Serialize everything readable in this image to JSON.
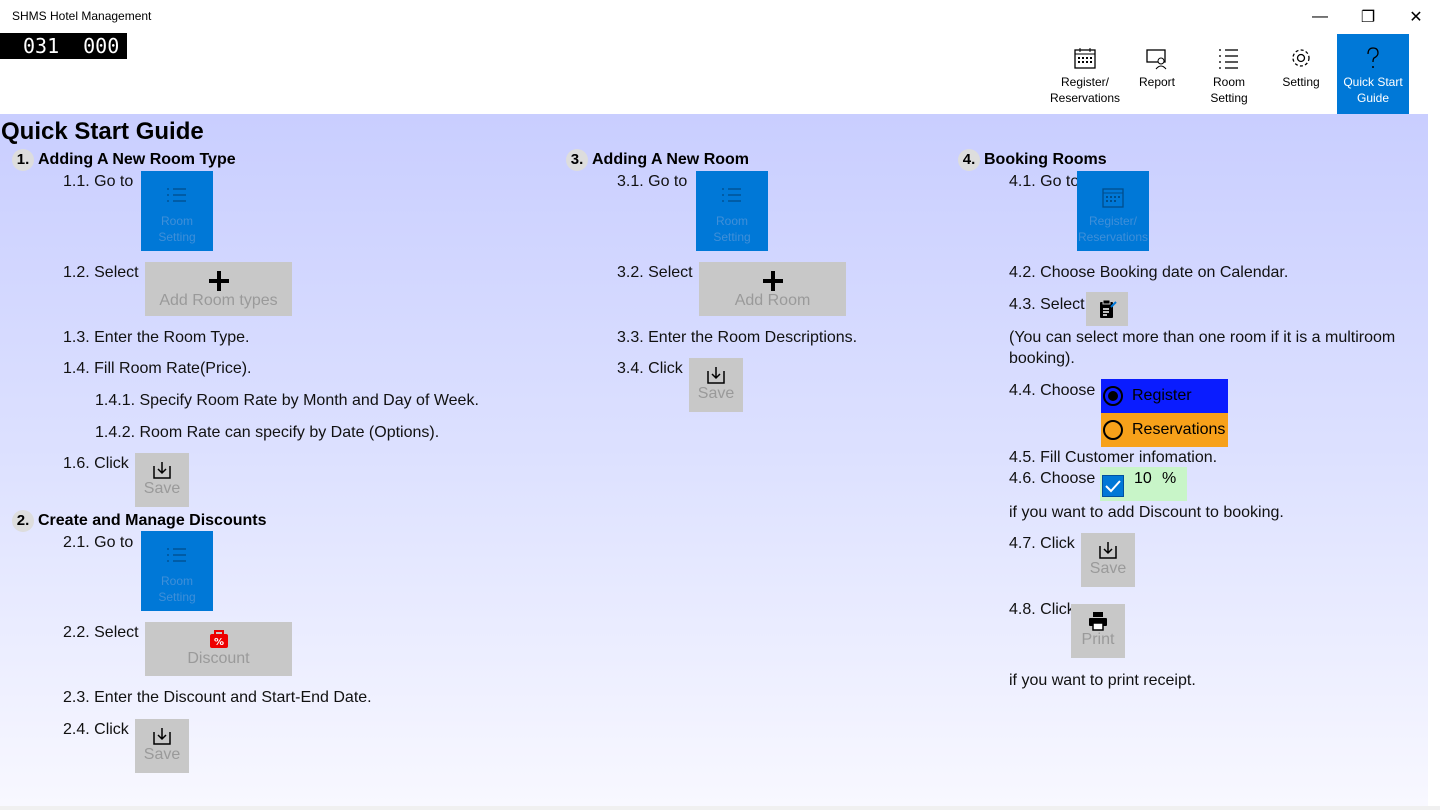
{
  "window": {
    "title": "SHMS Hotel Management",
    "minimize": "—",
    "restore": "❐",
    "close": "✕"
  },
  "counter": {
    "left": "031",
    "right": "000"
  },
  "toolbar": {
    "items": [
      {
        "label_1": "Register/",
        "label_2": "Reservations",
        "icon": "calendar-icon"
      },
      {
        "label_1": "Report",
        "label_2": "",
        "icon": "report-icon"
      },
      {
        "label_1": "Room",
        "label_2": "Setting",
        "icon": "list-icon"
      },
      {
        "label_1": "Setting",
        "label_2": "",
        "icon": "gear-icon"
      },
      {
        "label_1": "Quick Start",
        "label_2": "Guide",
        "icon": "question-icon"
      }
    ]
  },
  "guide": {
    "title": "Quick Start Guide",
    "s1": {
      "num": "1.",
      "title": "Adding A New Room Type",
      "s1_1": "1.1. Go to",
      "s1_2": "1.2. Select",
      "s1_3": "1.3. Enter the Room Type.",
      "s1_4": "1.4. Fill Room Rate(Price).",
      "s1_4_1": "1.4.1. Specify Room Rate by Month and Day of Week.",
      "s1_4_2": "1.4.2. Room Rate can specify by Date (Options).",
      "s1_6": "1.6. Click"
    },
    "s2": {
      "num": "2.",
      "title": "Create and Manage Discounts",
      "s2_1": "2.1. Go to",
      "s2_2": "2.2. Select",
      "s2_3": "2.3. Enter the Discount and Start-End Date.",
      "s2_4": "2.4. Click"
    },
    "s3": {
      "num": "3.",
      "title": "Adding A New Room",
      "s3_1": "3.1. Go to",
      "s3_2": "3.2. Select",
      "s3_3": "3.3. Enter the Room Descriptions.",
      "s3_4": "3.4. Click"
    },
    "s4": {
      "num": "4.",
      "title": "Booking Rooms",
      "s4_1": "4.1. Go to",
      "s4_2": "4.2. Choose Booking date on Calendar.",
      "s4_3": "4.3. Select",
      "note_1": "(You can select more than one room if it is a multiroom",
      "note_2": "booking).",
      "s4_4": "4.4. Choose",
      "s4_5": "4.5. Fill Customer infomation.",
      "s4_6": "4.6. Choose",
      "s4_6b": "if you want to add Discount to booking.",
      "s4_7": "4.7. Click",
      "s4_8": "4.8. Click",
      "s4_8b": "if you want to print receipt."
    }
  },
  "buttons": {
    "room_setting_1": "Room",
    "room_setting_2": "Setting",
    "register_1": "Register/",
    "register_2": "Reservations",
    "add_room_types": "Add Room types",
    "add_room": "Add Room",
    "discount": "Discount",
    "save": "Save",
    "print": "Print",
    "radio_register": "Register",
    "radio_reservations": "Reservations",
    "discount_value": "10",
    "percent": "%"
  },
  "colors": {
    "accent": "#0078d7",
    "register_bg": "#0a1cff",
    "reservations_bg": "#f7a11a",
    "discount_bg": "#c8f5c8"
  }
}
